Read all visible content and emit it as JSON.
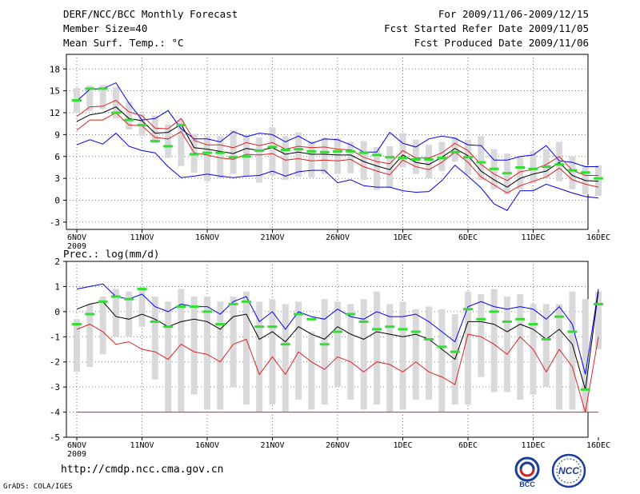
{
  "header": {
    "title": "DERF/NCC/BCC Monthly Forecast",
    "member": "Member Size=40",
    "var_temp": "Mean Surf. Temp.: °C",
    "period": "For 2009/11/06-2009/12/15",
    "start_ref": "Fcst Started Refer Date 2009/11/05",
    "produced": "Fcst Produced Date 2009/11/06"
  },
  "footer": {
    "url": "http://cmdp.ncc.cma.gov.cn",
    "grads": "GrADS: COLA/IGES"
  },
  "logos": {
    "bcc": "BCC",
    "ncc": "NCC"
  },
  "colors": {
    "grid": "#555555",
    "box": "#d9d9dc",
    "mean": "#000000",
    "spread": "#dd2222",
    "envelope": "#0000ee",
    "clim": "#33dd33"
  },
  "chart_data": [
    {
      "type": "box-plume",
      "title": "Mean Surf. Temp.: °C",
      "xlabel": "",
      "ylabel": "°C",
      "ylim": [
        -4,
        20
      ],
      "yticks": [
        -3,
        0,
        3,
        6,
        9,
        12,
        15,
        18
      ],
      "xticks": [
        {
          "day": 0,
          "label": "6NOV"
        },
        {
          "day": 5,
          "label": "11NOV"
        },
        {
          "day": 10,
          "label": "16NOV"
        },
        {
          "day": 15,
          "label": "21NOV"
        },
        {
          "day": 20,
          "label": "26NOV"
        },
        {
          "day": 25,
          "label": "1DEC"
        },
        {
          "day": 30,
          "label": "6DEC"
        },
        {
          "day": 35,
          "label": "11DEC"
        },
        {
          "day": 40,
          "label": "16DEC"
        }
      ],
      "year_label": "2009",
      "x_start_day": 0,
      "box_low": [
        12.0,
        12.2,
        12.5,
        11.2,
        9.7,
        8.8,
        7.8,
        5.8,
        4.7,
        3.8,
        2.6,
        3.0,
        3.6,
        3.3,
        2.4,
        3.4,
        2.8,
        3.2,
        3.1,
        3.6,
        3.6,
        3.7,
        2.8,
        1.4,
        1.7,
        4.5,
        3.6,
        3.0,
        4.0,
        5.3,
        3.5,
        2.8,
        1.5,
        0.8,
        1.5,
        2.3,
        3.0,
        2.6,
        1.5,
        0.8,
        0.6
      ],
      "box_high": [
        15.4,
        15.7,
        15.8,
        15.5,
        13.5,
        11.8,
        11.6,
        10.4,
        11.0,
        9.1,
        8.8,
        8.8,
        9.6,
        8.9,
        8.6,
        10.0,
        8.8,
        9.3,
        8.1,
        8.6,
        8.5,
        8.0,
        8.1,
        7.3,
        7.4,
        9.2,
        8.3,
        7.6,
        8.0,
        8.6,
        8.3,
        8.8,
        7.0,
        6.4,
        6.0,
        6.7,
        7.0,
        8.0,
        6.0,
        4.8,
        4.8
      ],
      "mean": [
        10.8,
        11.7,
        12.0,
        12.8,
        11.2,
        10.9,
        9.2,
        9.3,
        10.4,
        7.2,
        7.0,
        6.7,
        6.4,
        7.1,
        6.8,
        7.2,
        6.3,
        6.6,
        6.3,
        6.3,
        6.2,
        6.2,
        5.3,
        4.7,
        4.2,
        6.2,
        5.2,
        4.9,
        5.9,
        7.1,
        6.1,
        4.0,
        2.8,
        1.8,
        3.0,
        3.6,
        4.0,
        5.2,
        3.4,
        2.7,
        2.6
      ],
      "spread_hi": [
        11.5,
        12.8,
        12.9,
        13.7,
        12.1,
        11.6,
        9.9,
        9.8,
        11.2,
        8.2,
        7.6,
        7.6,
        7.2,
        7.9,
        7.5,
        7.9,
        7.0,
        7.4,
        7.2,
        7.3,
        7.0,
        6.9,
        5.9,
        5.3,
        5.0,
        6.8,
        5.8,
        5.8,
        6.5,
        7.8,
        6.8,
        4.9,
        3.6,
        2.7,
        3.9,
        4.2,
        4.9,
        6.0,
        4.1,
        3.4,
        3.4
      ],
      "spread_lo": [
        9.6,
        11.0,
        11.0,
        12.0,
        10.3,
        10.2,
        8.6,
        8.4,
        9.4,
        6.5,
        6.2,
        5.8,
        5.6,
        6.3,
        6.2,
        6.4,
        5.5,
        5.7,
        5.4,
        5.5,
        5.4,
        5.6,
        4.6,
        4.0,
        3.5,
        5.5,
        4.6,
        4.2,
        5.2,
        6.6,
        5.2,
        3.2,
        2.1,
        1.0,
        2.0,
        2.6,
        3.2,
        4.4,
        2.8,
        2.2,
        1.8
      ],
      "env_hi": [
        13.6,
        15.2,
        15.3,
        16.1,
        13.3,
        11.0,
        11.2,
        12.3,
        9.8,
        8.4,
        8.4,
        8.0,
        9.4,
        8.7,
        9.2,
        9.0,
        8.0,
        8.8,
        7.8,
        8.4,
        8.3,
        7.6,
        6.6,
        6.6,
        9.3,
        7.8,
        7.3,
        8.4,
        8.8,
        8.5,
        7.6,
        7.5,
        5.5,
        5.5,
        6.0,
        6.2,
        7.5,
        5.4,
        5.2,
        4.6,
        4.6
      ],
      "env_lo": [
        7.6,
        8.3,
        7.7,
        9.2,
        7.4,
        6.8,
        6.5,
        4.6,
        3.1,
        3.3,
        3.6,
        3.3,
        3.1,
        3.3,
        3.4,
        4.0,
        3.3,
        3.9,
        4.1,
        4.1,
        2.4,
        2.8,
        2.0,
        1.8,
        1.8,
        1.3,
        1.1,
        1.2,
        2.7,
        4.8,
        3.3,
        1.7,
        -0.5,
        -1.4,
        1.3,
        1.3,
        2.2,
        1.6,
        1.0,
        0.5,
        0.3
      ],
      "clim": [
        13.7,
        15.3,
        15.3,
        12.0,
        11.0,
        10.3,
        8.1,
        7.4,
        10.3,
        6.3,
        6.5,
        6.5,
        5.9,
        6.0,
        6.8,
        7.3,
        6.9,
        7.0,
        6.7,
        6.6,
        6.7,
        6.7,
        6.5,
        6.2,
        5.9,
        5.8,
        5.6,
        5.6,
        5.8,
        6.6,
        5.9,
        5.2,
        4.3,
        3.7,
        4.5,
        4.3,
        4.6,
        4.9,
        4.1,
        3.8,
        3.0
      ]
    },
    {
      "type": "box-plume",
      "title": "Prec.: log(mm/d)",
      "xlabel": "",
      "ylabel": "log(mm/d)",
      "ylim": [
        -5,
        2
      ],
      "yticks": [
        -5,
        -4,
        -3,
        -2,
        -1,
        0,
        1,
        2
      ],
      "xticks": [
        {
          "day": 0,
          "label": "6NOV"
        },
        {
          "day": 5,
          "label": "11NOV"
        },
        {
          "day": 10,
          "label": "16NOV"
        },
        {
          "day": 15,
          "label": "21NOV"
        },
        {
          "day": 20,
          "label": "26NOV"
        },
        {
          "day": 25,
          "label": "1DEC"
        },
        {
          "day": 30,
          "label": "6DEC"
        },
        {
          "day": 35,
          "label": "11DEC"
        },
        {
          "day": 40,
          "label": "16DEC"
        }
      ],
      "year_label": "2009",
      "x_start_day": 0,
      "box_low": [
        -2.4,
        -2.2,
        -1.7,
        -1.0,
        -1.0,
        -0.6,
        -2.7,
        -4.0,
        -4.0,
        -3.3,
        -3.9,
        -3.9,
        -3.0,
        -3.7,
        -4.0,
        -3.7,
        -4.0,
        -3.5,
        -3.9,
        -3.7,
        -3.0,
        -3.5,
        -3.9,
        -3.7,
        -4.0,
        -3.9,
        -3.5,
        -3.5,
        -4.0,
        -3.7,
        -3.7,
        -2.6,
        -3.2,
        -3.2,
        -3.5,
        -3.3,
        -3.0,
        -3.9,
        -3.9,
        -4.0,
        -1.5
      ],
      "box_high": [
        -0.3,
        0.3,
        0.6,
        0.9,
        0.8,
        1.0,
        0.6,
        0.4,
        0.9,
        0.6,
        0.6,
        0.4,
        0.6,
        0.8,
        0.4,
        0.5,
        0.3,
        0.4,
        -0.8,
        0.5,
        0.4,
        0.3,
        0.5,
        0.8,
        0.3,
        0.4,
        0.1,
        0.2,
        0.1,
        -0.1,
        0.8,
        0.7,
        0.9,
        0.6,
        0.7,
        0.3,
        0.3,
        0.3,
        0.8,
        0.5,
        0.8
      ],
      "mean": [
        0.1,
        0.3,
        0.4,
        -0.2,
        -0.3,
        -0.1,
        -0.3,
        -0.6,
        -0.4,
        -0.3,
        -0.4,
        -0.7,
        -0.2,
        -0.1,
        -1.1,
        -0.8,
        -1.2,
        -0.6,
        -0.9,
        -1.1,
        -0.6,
        -0.9,
        -1.1,
        -0.8,
        -0.9,
        -1.0,
        -0.9,
        -1.1,
        -1.5,
        -1.9,
        -0.4,
        -0.4,
        -0.5,
        -0.8,
        -0.5,
        -0.7,
        -1.1,
        -0.7,
        -1.3,
        -3.1,
        0.8
      ],
      "spread_hi": [
        0.1,
        0.3,
        0.4,
        -0.2,
        -0.3,
        -0.1,
        -0.3,
        -0.6,
        -0.4,
        -0.3,
        -0.4,
        -0.7,
        -0.2,
        -0.1,
        -1.1,
        -0.8,
        -1.2,
        -0.6,
        -0.9,
        -1.1,
        -0.6,
        -0.9,
        -1.1,
        -0.8,
        -0.9,
        -1.0,
        -0.9,
        -1.1,
        -1.5,
        -1.9,
        -0.4,
        -0.4,
        -0.5,
        -0.8,
        -0.5,
        -0.7,
        -1.1,
        -0.7,
        -1.3,
        -3.1,
        0.8
      ],
      "spread_lo": [
        -0.7,
        -0.5,
        -0.8,
        -1.3,
        -1.2,
        -1.5,
        -1.6,
        -1.9,
        -1.3,
        -1.6,
        -1.7,
        -2.0,
        -1.3,
        -1.1,
        -2.5,
        -1.8,
        -2.5,
        -1.6,
        -2.0,
        -2.3,
        -1.8,
        -2.0,
        -2.4,
        -2.0,
        -2.1,
        -2.4,
        -2.0,
        -2.4,
        -2.6,
        -2.9,
        -0.9,
        -1.0,
        -1.3,
        -1.7,
        -1.0,
        -1.5,
        -2.4,
        -1.5,
        -2.2,
        -4.0,
        -1.0
      ],
      "env_hi": [
        0.9,
        1.0,
        1.1,
        0.6,
        0.5,
        0.7,
        0.2,
        0.0,
        0.3,
        0.2,
        0.2,
        -0.1,
        0.4,
        0.6,
        -0.4,
        0.0,
        -0.7,
        0.0,
        -0.2,
        -0.3,
        0.1,
        -0.2,
        -0.3,
        0.0,
        -0.2,
        -0.2,
        -0.1,
        -0.4,
        -0.8,
        -1.2,
        0.2,
        0.4,
        0.2,
        0.1,
        0.2,
        0.1,
        -0.3,
        0.2,
        -0.5,
        -2.5,
        0.9
      ],
      "env_lo": [
        -4.0,
        -4.0,
        -4.0,
        -4.0,
        -4.0,
        -4.0,
        -4.0,
        -4.0,
        -4.0,
        -4.0,
        -4.0,
        -4.0,
        -4.0,
        -4.0,
        -4.0,
        -4.0,
        -4.0,
        -4.0,
        -4.0,
        -4.0,
        -4.0,
        -4.0,
        -4.0,
        -4.0,
        -4.0,
        -4.0,
        -4.0,
        -4.0,
        -4.0,
        -4.0,
        -4.0,
        -4.0,
        -4.0,
        -4.0,
        -4.0,
        -4.0,
        -4.0,
        -4.0,
        -4.0,
        -4.0,
        -4.0
      ],
      "clim": [
        -0.5,
        -0.1,
        0.4,
        0.6,
        0.5,
        0.9,
        -0.4,
        -0.6,
        0.2,
        0.2,
        0.0,
        -0.5,
        0.3,
        0.4,
        -0.6,
        -0.6,
        -1.3,
        -0.1,
        -0.3,
        -1.3,
        -0.8,
        -0.1,
        -0.4,
        -0.7,
        -0.6,
        -0.7,
        -0.8,
        -1.1,
        -1.4,
        -1.6,
        0.1,
        -0.3,
        0.0,
        -0.4,
        -0.3,
        -0.5,
        -1.1,
        -0.2,
        -0.8,
        -3.1,
        0.3
      ]
    }
  ]
}
